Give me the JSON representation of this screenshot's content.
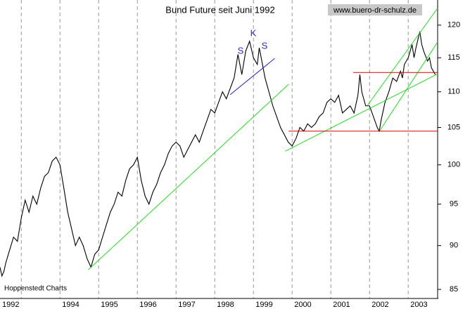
{
  "chart_data": {
    "type": "line",
    "title": "Bund Future seit Juni 1992",
    "source": "www.buero-dr-schulz.de",
    "credit": "Hoppenstedt Charts",
    "log_scale": true,
    "xlim": [
      1992.45,
      2003.76
    ],
    "ylim": [
      84,
      124
    ],
    "xticks": [
      {
        "value": 1992.45,
        "label": "1992"
      },
      1994,
      1995,
      1996,
      1997,
      1998,
      1999,
      2000,
      2001,
      2002,
      2003
    ],
    "xgrid": [
      1993,
      1994,
      1995,
      1996,
      1997,
      1998,
      1999,
      2000,
      2001,
      2002,
      2003
    ],
    "yticks": [
      85,
      90,
      95,
      100,
      105,
      110,
      115,
      120
    ],
    "x": [
      1992.45,
      1992.5,
      1992.55,
      1992.6,
      1992.7,
      1992.8,
      1992.9,
      1993.0,
      1993.1,
      1993.2,
      1993.3,
      1993.4,
      1993.5,
      1993.6,
      1993.7,
      1993.8,
      1993.9,
      1994.0,
      1994.1,
      1994.2,
      1994.3,
      1994.4,
      1994.5,
      1994.6,
      1994.7,
      1994.8,
      1994.9,
      1995.0,
      1995.1,
      1995.2,
      1995.3,
      1995.4,
      1995.5,
      1995.6,
      1995.7,
      1995.8,
      1995.9,
      1996.0,
      1996.1,
      1996.2,
      1996.3,
      1996.4,
      1996.5,
      1996.6,
      1996.7,
      1996.8,
      1996.9,
      1997.0,
      1997.1,
      1997.2,
      1997.3,
      1997.4,
      1997.5,
      1997.6,
      1997.7,
      1997.8,
      1997.9,
      1998.0,
      1998.1,
      1998.2,
      1998.3,
      1998.4,
      1998.5,
      1998.6,
      1998.7,
      1998.8,
      1998.9,
      1999.0,
      1999.1,
      1999.15,
      1999.2,
      1999.3,
      1999.4,
      1999.5,
      1999.6,
      1999.7,
      1999.8,
      1999.9,
      2000.0,
      2000.1,
      2000.2,
      2000.3,
      2000.4,
      2000.5,
      2000.6,
      2000.7,
      2000.8,
      2000.9,
      2001.0,
      2001.1,
      2001.2,
      2001.3,
      2001.4,
      2001.5,
      2001.6,
      2001.7,
      2001.75,
      2001.8,
      2001.9,
      2002.0,
      2002.1,
      2002.2,
      2002.25,
      2002.3,
      2002.4,
      2002.5,
      2002.6,
      2002.7,
      2002.8,
      2002.85,
      2002.9,
      2003.0,
      2003.1,
      2003.15,
      2003.2,
      2003.3,
      2003.35,
      2003.4,
      2003.5,
      2003.55,
      2003.6,
      2003.7
    ],
    "series": [
      {
        "color": "#000000",
        "values": [
          87.5,
          86.5,
          87,
          88,
          89.5,
          91,
          90.5,
          93.3,
          95.5,
          94,
          96,
          95,
          97,
          98.5,
          99,
          100.5,
          101,
          100,
          97,
          94,
          92,
          90,
          91,
          90,
          88.5,
          87.5,
          89,
          89.5,
          91,
          92.5,
          94,
          95,
          96.5,
          96,
          98,
          99.5,
          100,
          101,
          98,
          96,
          95,
          96.5,
          97.5,
          99,
          100,
          101.5,
          102.5,
          103,
          102.5,
          101,
          102,
          103,
          104,
          103,
          104.5,
          106,
          107.5,
          107,
          108.5,
          110,
          109,
          110.5,
          112,
          115.5,
          112.5,
          116,
          117.5,
          115,
          114,
          116.5,
          115,
          112,
          110,
          108,
          106.5,
          105,
          104,
          103,
          102.5,
          103.5,
          105,
          104.5,
          105.5,
          105,
          105.5,
          106.5,
          107,
          108.5,
          109,
          108.5,
          109.5,
          107,
          107.5,
          108,
          107,
          109.5,
          112.5,
          110,
          108,
          108,
          106.5,
          105,
          104.5,
          106,
          108.5,
          110,
          112,
          111.5,
          113,
          112,
          114,
          115,
          117,
          115,
          116.5,
          119,
          117,
          116,
          114.5,
          115,
          113.5,
          112.5
        ]
      }
    ],
    "trendlines": [
      {
        "color": "#22dd22",
        "x1": 1994.73,
        "y1": 87.2,
        "x2": 1999.91,
        "y2": 111.1
      },
      {
        "color": "#22dd22",
        "x1": 1999.82,
        "y1": 101.8,
        "x2": 2003.76,
        "y2": 112.6
      },
      {
        "color": "#22dd22",
        "x1": 2001.95,
        "y1": 108.1,
        "x2": 2003.76,
        "y2": 122.7
      },
      {
        "color": "#22dd22",
        "x1": 2002.27,
        "y1": 104.6,
        "x2": 2003.76,
        "y2": 117.4
      },
      {
        "color": "#dd0000",
        "x1": 2001.58,
        "y1": 112.8,
        "x2": 2003.76,
        "y2": 112.8
      },
      {
        "color": "#dd0000",
        "x1": 1999.91,
        "y1": 104.5,
        "x2": 2003.76,
        "y2": 104.5
      },
      {
        "color": "#2222cc",
        "x1": 1998.4,
        "y1": 109.6,
        "x2": 1999.55,
        "y2": 114.9
      }
    ],
    "annotations": [
      "S",
      "K",
      "S"
    ],
    "annotation_color": "#2a2ad0"
  }
}
